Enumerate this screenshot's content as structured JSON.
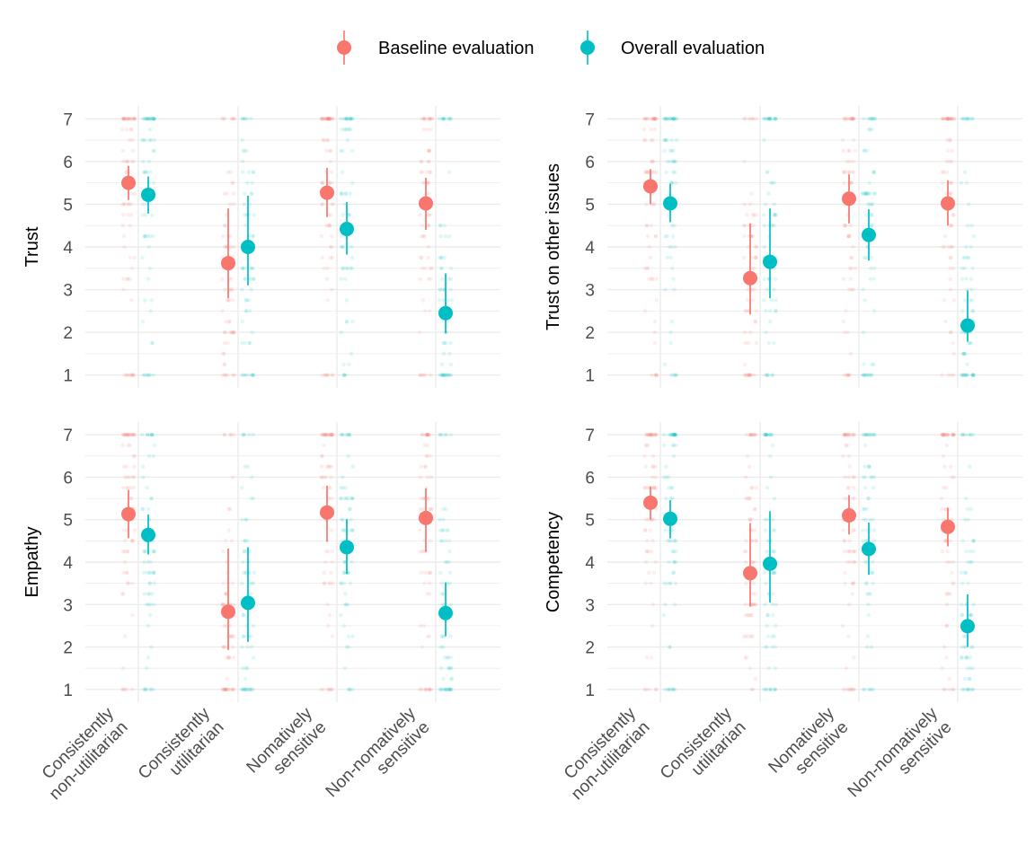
{
  "legend": {
    "position": "top",
    "items": [
      {
        "label": "Baseline evaluation",
        "color": "#F8766D"
      },
      {
        "label": "Overall evaluation",
        "color": "#00BFC4"
      }
    ]
  },
  "chart_data": [
    {
      "type": "scatter",
      "ylabel": "Trust",
      "categories": [
        "Consistently non-utilitarian",
        "Consistently utilitarian",
        "Nomatively sensitive",
        "Non-nomatively sensitive"
      ],
      "ylim": [
        0.7,
        7.3
      ],
      "yticks": [
        1,
        2,
        3,
        4,
        5,
        6,
        7
      ],
      "grid": true,
      "series": [
        {
          "name": "Baseline evaluation",
          "mean": [
            5.5,
            3.62,
            5.27,
            5.02
          ],
          "lower": [
            5.1,
            2.8,
            4.7,
            4.4
          ],
          "upper": [
            5.9,
            4.9,
            5.85,
            5.62
          ]
        },
        {
          "name": "Overall evaluation",
          "mean": [
            5.22,
            4.0,
            4.42,
            2.45
          ],
          "lower": [
            4.78,
            3.1,
            3.82,
            1.98
          ],
          "upper": [
            5.65,
            5.2,
            5.05,
            3.38
          ]
        }
      ]
    },
    {
      "type": "scatter",
      "ylabel": "Trust on other issues",
      "categories": [
        "Consistently non-utilitarian",
        "Consistently utilitarian",
        "Nomatively sensitive",
        "Non-nomatively sensitive"
      ],
      "ylim": [
        0.7,
        7.3
      ],
      "yticks": [
        1,
        2,
        3,
        4,
        5,
        6,
        7
      ],
      "grid": true,
      "series": [
        {
          "name": "Baseline evaluation",
          "mean": [
            5.42,
            3.27,
            5.13,
            5.02
          ],
          "lower": [
            5.0,
            2.42,
            4.55,
            4.5
          ],
          "upper": [
            5.82,
            4.55,
            5.7,
            5.56
          ]
        },
        {
          "name": "Overall evaluation",
          "mean": [
            5.02,
            3.65,
            4.28,
            2.16
          ],
          "lower": [
            4.58,
            2.8,
            3.68,
            1.78
          ],
          "upper": [
            5.48,
            4.9,
            4.88,
            2.98
          ]
        }
      ]
    },
    {
      "type": "scatter",
      "ylabel": "Empathy",
      "categories": [
        "Consistently non-utilitarian",
        "Consistently utilitarian",
        "Nomatively sensitive",
        "Non-nomatively sensitive"
      ],
      "ylim": [
        0.7,
        7.3
      ],
      "yticks": [
        1,
        2,
        3,
        4,
        5,
        6,
        7
      ],
      "grid": true,
      "series": [
        {
          "name": "Baseline evaluation",
          "mean": [
            5.13,
            2.83,
            5.17,
            5.04
          ],
          "lower": [
            4.56,
            1.93,
            4.48,
            4.24
          ],
          "upper": [
            5.7,
            4.32,
            5.8,
            5.74
          ]
        },
        {
          "name": "Overall evaluation",
          "mean": [
            4.64,
            3.04,
            4.35,
            2.8
          ],
          "lower": [
            4.18,
            2.12,
            3.72,
            2.25
          ],
          "upper": [
            5.12,
            4.35,
            5.01,
            3.52
          ]
        }
      ]
    },
    {
      "type": "scatter",
      "ylabel": "Competency",
      "categories": [
        "Consistently non-utilitarian",
        "Consistently utilitarian",
        "Nomatively sensitive",
        "Non-nomatively sensitive"
      ],
      "ylim": [
        0.7,
        7.3
      ],
      "yticks": [
        1,
        2,
        3,
        4,
        5,
        6,
        7
      ],
      "grid": true,
      "series": [
        {
          "name": "Baseline evaluation",
          "mean": [
            5.4,
            3.74,
            5.1,
            4.83
          ],
          "lower": [
            5.0,
            2.95,
            4.65,
            4.37
          ],
          "upper": [
            5.78,
            4.92,
            5.58,
            5.28
          ]
        },
        {
          "name": "Overall evaluation",
          "mean": [
            5.02,
            3.96,
            4.31,
            2.49
          ],
          "lower": [
            4.56,
            3.05,
            3.7,
            2.0
          ],
          "upper": [
            5.46,
            5.2,
            4.93,
            3.24
          ]
        }
      ]
    }
  ]
}
